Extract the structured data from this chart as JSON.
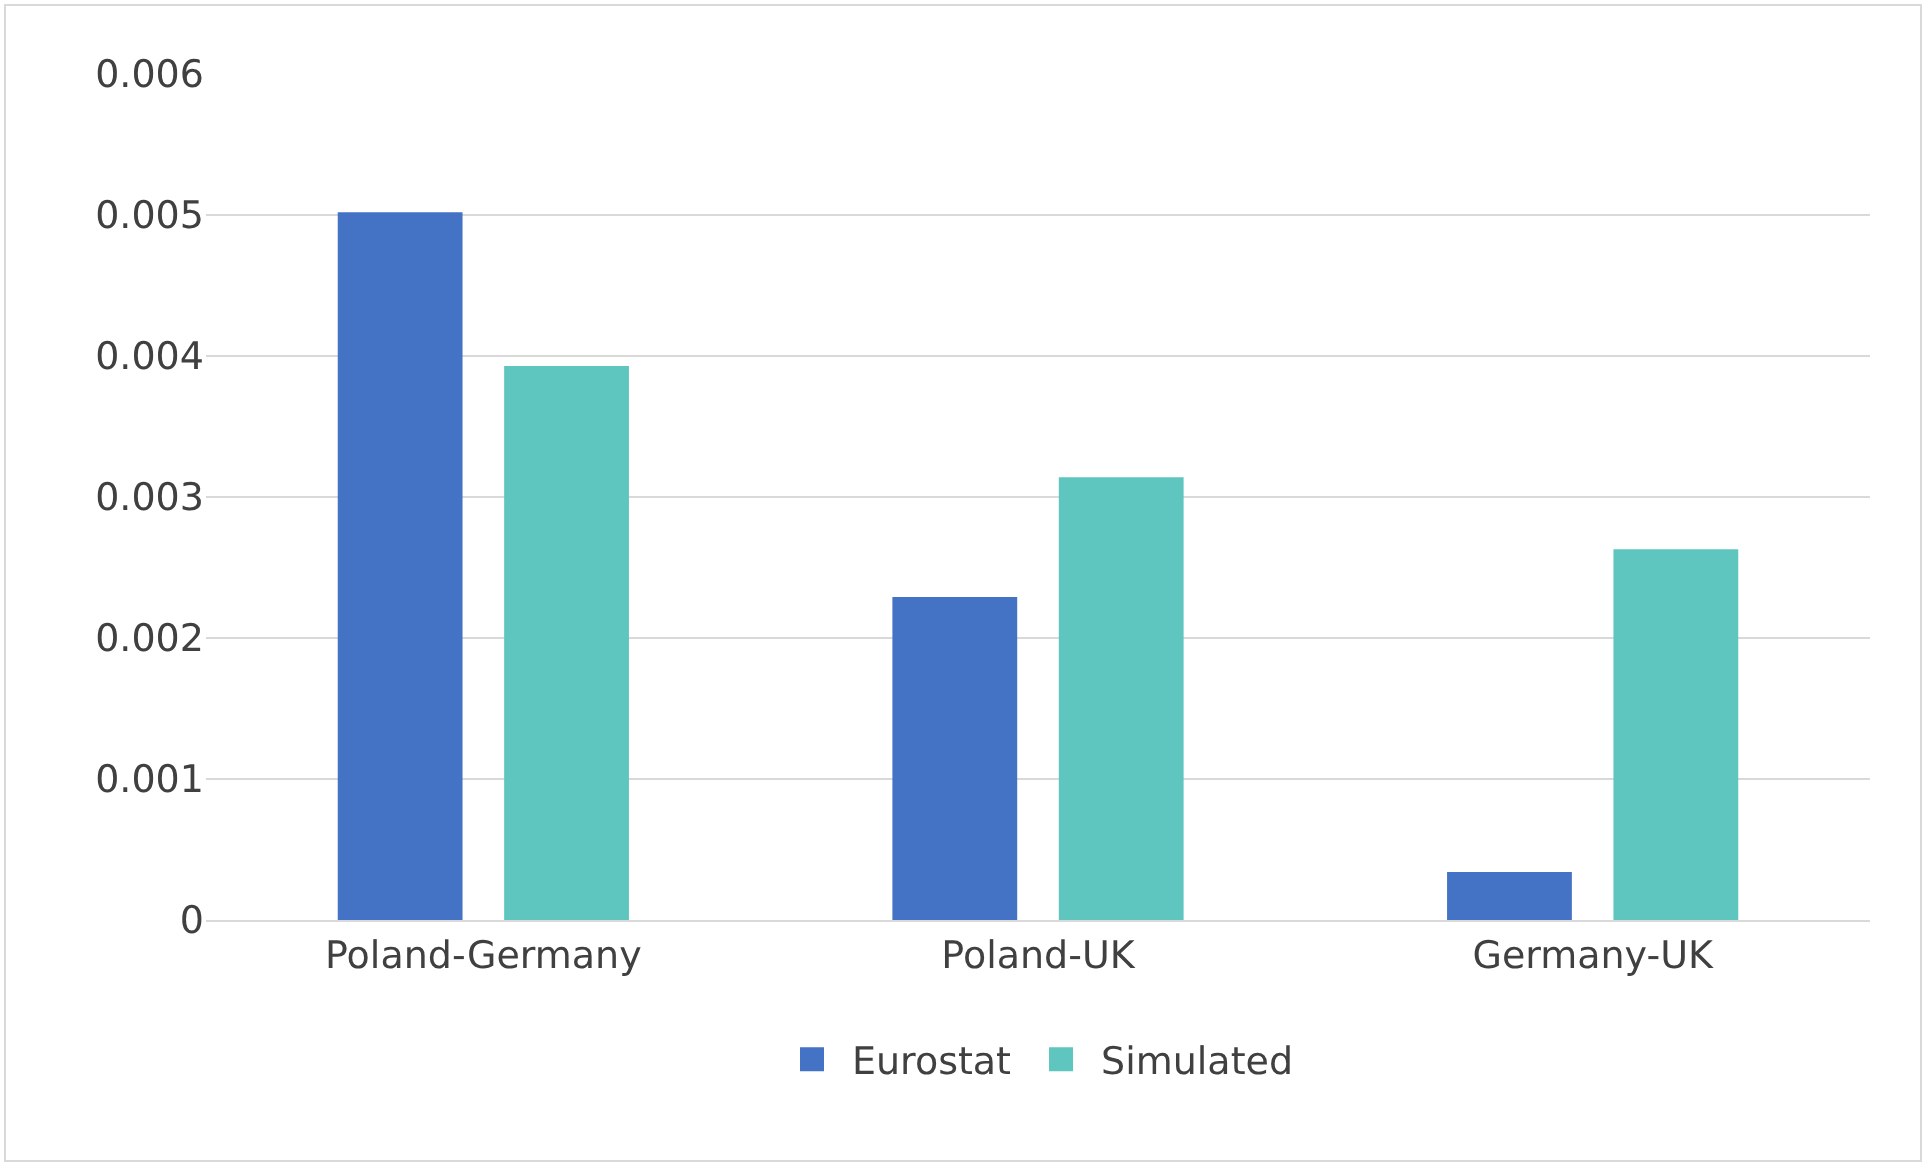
{
  "chart_data": {
    "type": "bar",
    "categories": [
      "Poland-Germany",
      "Poland-UK",
      "Germany-UK"
    ],
    "series": [
      {
        "name": "Eurostat",
        "color": "#4472c4",
        "values": [
          0.00502,
          0.00229,
          0.00034
        ]
      },
      {
        "name": "Simulated",
        "color": "#5fc5bf",
        "values": [
          0.00393,
          0.00314,
          0.00263
        ]
      }
    ],
    "ylim": [
      0,
      0.006
    ],
    "yticks": [
      0,
      0.001,
      0.002,
      0.003,
      0.004,
      0.005,
      0.006
    ],
    "grid": "y",
    "legend": "bottom"
  }
}
